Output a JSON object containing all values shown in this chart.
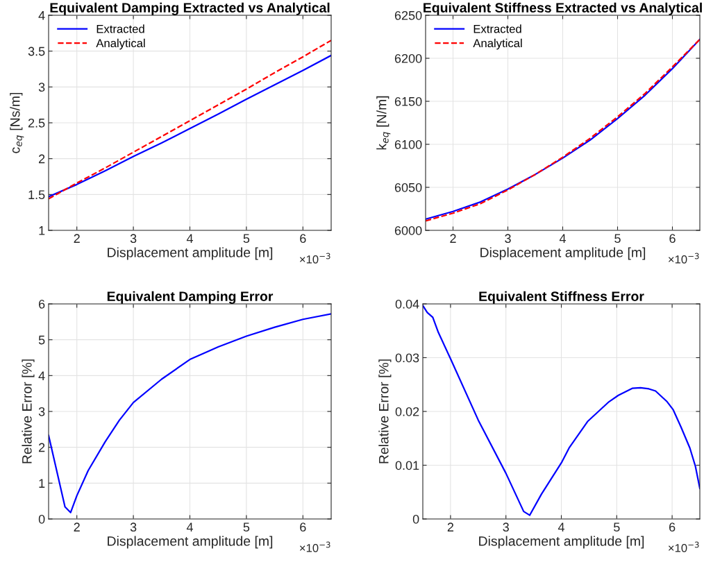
{
  "chart_data": [
    {
      "type": "line",
      "title": "Equivalent Damping Extracted vs Analytical",
      "xlabel": "Displacement amplitude [m]",
      "ylabel": "c$_{eq}$ [Ns/m]",
      "annotations": [
        "×10$^{−3}$"
      ],
      "xlim": [
        1.5,
        6.5
      ],
      "xticks": [
        2,
        3,
        4,
        5,
        6
      ],
      "ylim": [
        1,
        4
      ],
      "yticks": [
        1,
        1.5,
        2,
        2.5,
        3,
        3.5,
        4
      ],
      "grid": true,
      "legend": "top left",
      "x": [
        1.5,
        2,
        2.5,
        3,
        3.5,
        4,
        4.5,
        5,
        5.5,
        6,
        6.5
      ],
      "series": [
        {
          "name": "Extracted",
          "color": "#0000ff",
          "line_style": "solid",
          "values": [
            1.47,
            1.64,
            1.83,
            2.03,
            2.22,
            2.42,
            2.62,
            2.83,
            3.03,
            3.23,
            3.44
          ]
        },
        {
          "name": "Analytical",
          "color": "#ff0000",
          "line_style": "dashed",
          "values": [
            1.44,
            1.66,
            1.87,
            2.09,
            2.31,
            2.53,
            2.75,
            2.97,
            3.2,
            3.42,
            3.65
          ]
        }
      ]
    },
    {
      "type": "line",
      "title": "Equivalent Stiffness Extracted vs Analytical",
      "xlabel": "Displacement amplitude [m]",
      "ylabel": "k$_{eq}$ [N/m]",
      "annotations": [
        "×10$^{−3}$"
      ],
      "xlim": [
        1.5,
        6.5
      ],
      "xticks": [
        2,
        3,
        4,
        5,
        6
      ],
      "ylim": [
        6000,
        6250
      ],
      "yticks": [
        6000,
        6050,
        6100,
        6150,
        6200,
        6250
      ],
      "grid": true,
      "legend": "top left",
      "x": [
        1.5,
        2,
        2.5,
        3,
        3.5,
        4,
        4.5,
        5,
        5.5,
        6,
        6.5
      ],
      "series": [
        {
          "name": "Extracted",
          "color": "#0000ff",
          "line_style": "solid",
          "values": [
            6013,
            6022,
            6033,
            6048,
            6065,
            6084,
            6105,
            6130,
            6157,
            6188,
            6222
          ]
        },
        {
          "name": "Analytical",
          "color": "#ff0000",
          "line_style": "dashed",
          "values": [
            6011,
            6020,
            6031,
            6047,
            6065,
            6085,
            6107,
            6132,
            6159,
            6190,
            6222
          ]
        }
      ]
    },
    {
      "type": "line",
      "title": "Equivalent Damping Error",
      "xlabel": "Displacement amplitude [m]",
      "ylabel": "Relative Error [%]",
      "annotations": [
        "×10$^{−3}$"
      ],
      "xlim": [
        1.5,
        6.5
      ],
      "xticks": [
        2,
        3,
        4,
        5,
        6
      ],
      "ylim": [
        0,
        6
      ],
      "yticks": [
        0,
        1,
        2,
        3,
        4,
        5,
        6
      ],
      "grid": true,
      "x": [
        1.5,
        1.79,
        1.89,
        2.0,
        2.2,
        2.5,
        2.75,
        3,
        3.5,
        4,
        4.5,
        5,
        5.5,
        6,
        6.5
      ],
      "series": [
        {
          "color": "#0000ff",
          "line_style": "solid",
          "values": [
            2.33,
            0.34,
            0.18,
            0.65,
            1.35,
            2.15,
            2.75,
            3.25,
            3.9,
            4.45,
            4.8,
            5.1,
            5.35,
            5.57,
            5.72
          ]
        }
      ]
    },
    {
      "type": "line",
      "title": "Equivalent Stiffness Error",
      "xlabel": "Displacement amplitude [m]",
      "ylabel": "Relative Error [%]",
      "annotations": [
        "×10$^{−3}$"
      ],
      "xlim": [
        1.5,
        6.5
      ],
      "xticks": [
        2,
        3,
        4,
        5,
        6
      ],
      "ylim": [
        0,
        0.04
      ],
      "yticks": [
        0,
        0.01,
        0.02,
        0.03,
        0.04
      ],
      "grid": true,
      "x": [
        1.5,
        1.58,
        1.68,
        1.78,
        2,
        2.5,
        3,
        3.32,
        3.43,
        3.64,
        4.01,
        4.14,
        4.48,
        4.86,
        5.03,
        5.28,
        5.43,
        5.58,
        5.7,
        5.91,
        6.02,
        6.16,
        6.32,
        6.42,
        6.5
      ],
      "series": [
        {
          "color": "#0000ff",
          "line_style": "solid",
          "values": [
            0.0397,
            0.0384,
            0.0375,
            0.0347,
            0.0298,
            0.0184,
            0.0085,
            0.0014,
            0.0007,
            0.0046,
            0.0106,
            0.0132,
            0.0182,
            0.0218,
            0.023,
            0.0243,
            0.0244,
            0.0242,
            0.0238,
            0.0218,
            0.0203,
            0.0171,
            0.0132,
            0.0098,
            0.0057
          ]
        }
      ]
    }
  ]
}
